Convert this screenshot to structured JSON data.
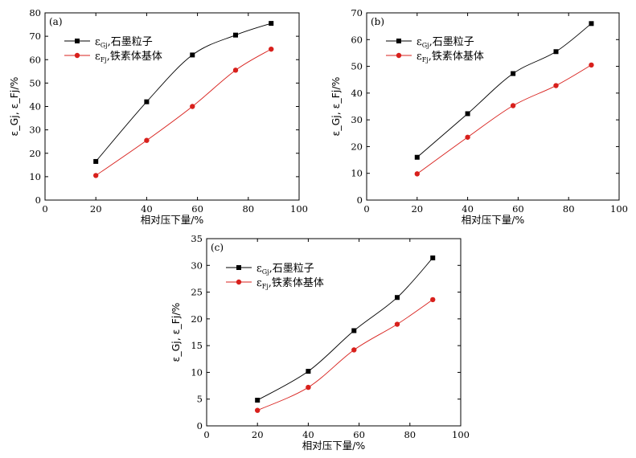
{
  "colors": {
    "series_black": "#000000",
    "series_red": "#d8201c",
    "axis": "#000000"
  },
  "chart_data": [
    {
      "type": "line",
      "panel_label": "(a)",
      "xlabel": "相对压下量/%",
      "ylabel": "ε_Gj, ε_Fj/%",
      "xlim": [
        0,
        100
      ],
      "ylim": [
        0,
        80
      ],
      "xticks": [
        0,
        20,
        40,
        60,
        80,
        100
      ],
      "yticks": [
        0,
        10,
        20,
        30,
        40,
        50,
        60,
        70,
        80
      ],
      "grid": false,
      "legend_position": "top-left",
      "series": [
        {
          "name": "石墨粒子",
          "symbol": "ε",
          "sub": "Gj",
          "marker": "square",
          "color": "#000000",
          "x": [
            20,
            40,
            58,
            75,
            89
          ],
          "y": [
            16.5,
            42,
            62,
            70.5,
            75.5
          ]
        },
        {
          "name": "铁素体基体",
          "symbol": "ε",
          "sub": "Fj",
          "marker": "circle",
          "color": "#d8201c",
          "x": [
            20,
            40,
            58,
            75,
            89
          ],
          "y": [
            10.5,
            25.5,
            40,
            55.5,
            64.5
          ]
        }
      ]
    },
    {
      "type": "line",
      "panel_label": "(b)",
      "xlabel": "相对压下量/%",
      "ylabel": "ε_Gj, ε_Fj/%",
      "xlim": [
        0,
        100
      ],
      "ylim": [
        0,
        70
      ],
      "xticks": [
        0,
        20,
        40,
        60,
        80,
        100
      ],
      "yticks": [
        0,
        10,
        20,
        30,
        40,
        50,
        60,
        70
      ],
      "grid": false,
      "legend_position": "top-left",
      "series": [
        {
          "name": "石墨粒子",
          "symbol": "ε",
          "sub": "Gj",
          "marker": "square",
          "color": "#000000",
          "x": [
            20,
            40,
            58,
            75,
            89
          ],
          "y": [
            16,
            32.3,
            47.3,
            55.5,
            66
          ]
        },
        {
          "name": "铁素体基体",
          "symbol": "ε",
          "sub": "Fj",
          "marker": "circle",
          "color": "#d8201c",
          "x": [
            20,
            40,
            58,
            75,
            89
          ],
          "y": [
            9.8,
            23.5,
            35.3,
            42.8,
            50.5
          ]
        }
      ]
    },
    {
      "type": "line",
      "panel_label": "(c)",
      "xlabel": "相对压下量/%",
      "ylabel": "ε_Gj, ε_Fj/%",
      "xlim": [
        0,
        100
      ],
      "ylim": [
        0,
        35
      ],
      "xticks": [
        0,
        20,
        40,
        60,
        80,
        100
      ],
      "yticks": [
        0,
        5,
        10,
        15,
        20,
        25,
        30,
        35
      ],
      "grid": false,
      "legend_position": "top-left",
      "series": [
        {
          "name": "石墨粒子",
          "symbol": "ε",
          "sub": "Gj",
          "marker": "square",
          "color": "#000000",
          "x": [
            20,
            40,
            58,
            75,
            89
          ],
          "y": [
            4.8,
            10.2,
            17.8,
            24,
            31.4
          ]
        },
        {
          "name": "铁素体基体",
          "symbol": "ε",
          "sub": "Fj",
          "marker": "circle",
          "color": "#d8201c",
          "x": [
            20,
            40,
            58,
            75,
            89
          ],
          "y": [
            2.9,
            7.2,
            14.2,
            19,
            23.6
          ]
        }
      ]
    }
  ]
}
